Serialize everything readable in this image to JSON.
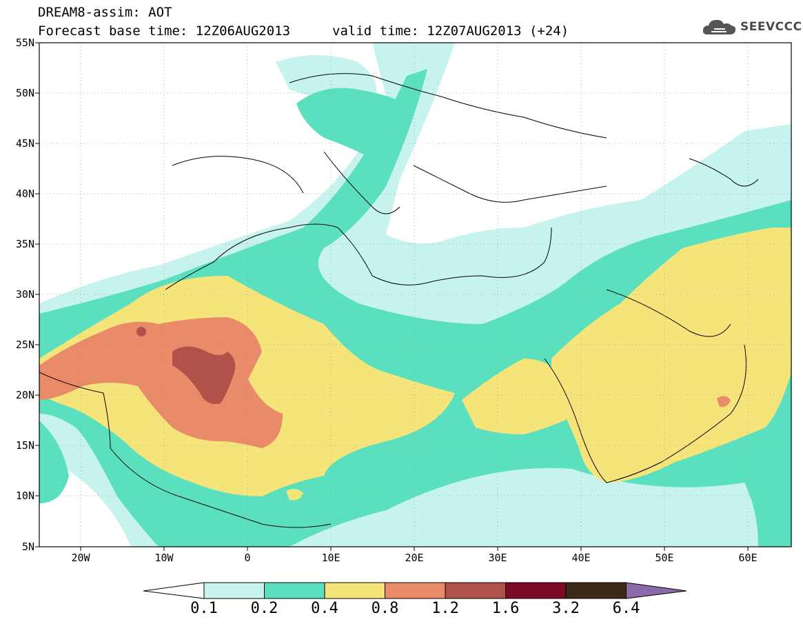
{
  "header": {
    "line1": "DREAM8-assim: AOT",
    "base_time": "Forecast base time: 12Z06AUG2013",
    "valid_time": "valid time: 12Z07AUG2013 (+24)"
  },
  "logo": {
    "text": "SEEVCCC",
    "icon": "cloud-icon"
  },
  "map": {
    "lon_range": [
      -25,
      65
    ],
    "lat_range": [
      5,
      55
    ],
    "lat_labels": [
      "55N",
      "50N",
      "45N",
      "40N",
      "35N",
      "30N",
      "25N",
      "20N",
      "15N",
      "10N",
      "5N"
    ],
    "lon_labels": [
      "20W",
      "10W",
      "0",
      "10E",
      "20E",
      "30E",
      "40E",
      "50E",
      "60E"
    ],
    "gridlines": "dotted"
  },
  "colorbar": {
    "boundaries": [
      "0.1",
      "0.2",
      "0.4",
      "0.8",
      "1.2",
      "1.6",
      "3.2",
      "6.4"
    ],
    "colors": [
      "#c6f3ee",
      "#5ae0be",
      "#f5e47a",
      "#e98a68",
      "#b0524a",
      "#7a0a26",
      "#3b2a18",
      "#8c6aa8"
    ]
  },
  "fields": {
    "aot_0_1": "#c6f3ee",
    "aot_0_2": "#5ae0be",
    "aot_0_4": "#f5e47a",
    "aot_0_8": "#e98a68",
    "aot_1_2": "#b0524a"
  }
}
